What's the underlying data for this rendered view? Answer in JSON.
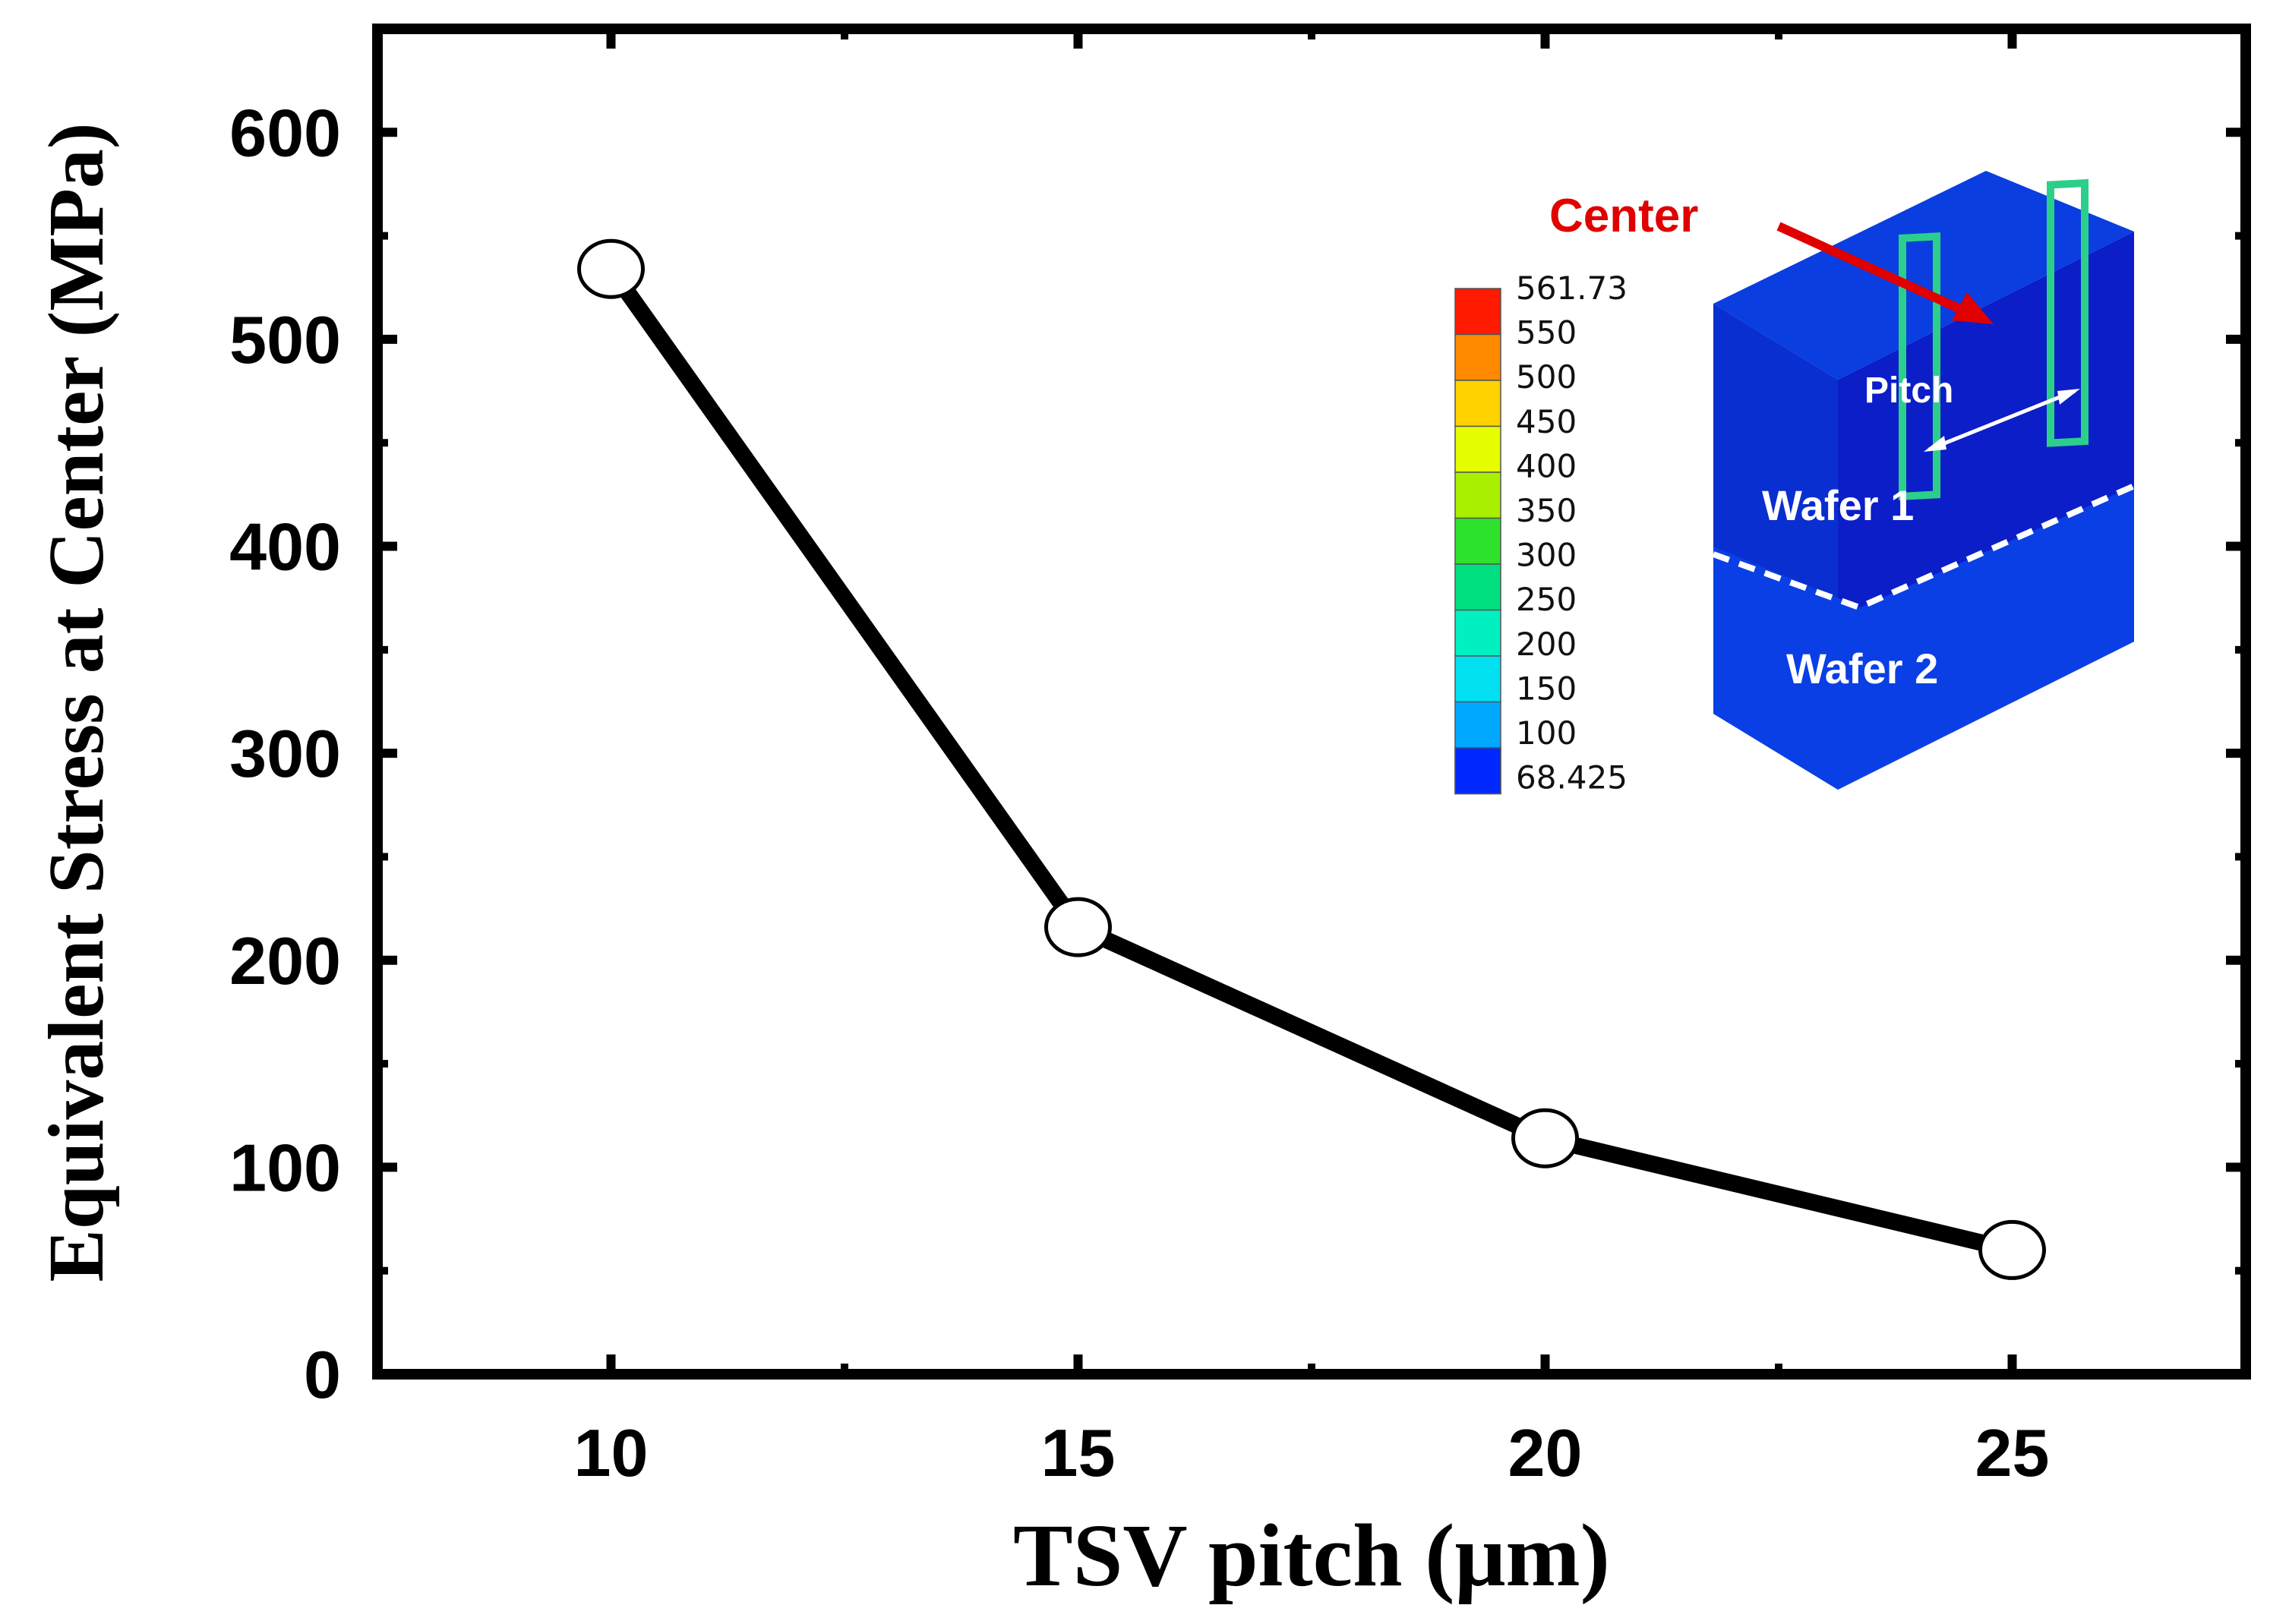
{
  "chart_data": {
    "type": "line",
    "title": "",
    "xlabel": "TSV pitch (μm)",
    "ylabel": "Equivalent Stress at Center (MPa)",
    "x": [
      10,
      15,
      20,
      25
    ],
    "series": [
      {
        "name": "Equivalent stress",
        "values": [
          534,
          216,
          114,
          60
        ]
      }
    ],
    "xlim": [
      7.5,
      27.5
    ],
    "ylim": [
      0,
      650
    ],
    "xticks": [
      10,
      15,
      20,
      25
    ],
    "yticks": [
      0,
      100,
      200,
      300,
      400,
      500,
      600
    ],
    "xtick_labels": [
      "10",
      "15",
      "20",
      "25"
    ],
    "ytick_labels": [
      "0",
      "100",
      "200",
      "300",
      "400",
      "500",
      "600"
    ],
    "grid": false,
    "marker": "open-circle",
    "line_color": "#000000"
  },
  "inset": {
    "annotation_center": "Center",
    "label_pitch": "Pitch",
    "label_wafer1": "Wafer 1",
    "label_wafer2": "Wafer 2",
    "colorbar": {
      "labels": [
        "561.73",
        "550",
        "500",
        "450",
        "400",
        "350",
        "300",
        "250",
        "200",
        "150",
        "100",
        "68.425"
      ],
      "colors": [
        "#ff1a00",
        "#ff8a00",
        "#ffd200",
        "#e6ff00",
        "#a8f000",
        "#2ee22e",
        "#00e080",
        "#00f0c0",
        "#00e0f0",
        "#00a8ff",
        "#0070ff",
        "#0028ff"
      ]
    },
    "annotation_color": "#e00000"
  }
}
